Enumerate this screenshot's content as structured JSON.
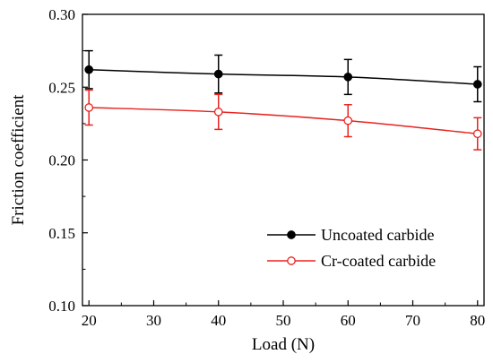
{
  "chart_data": {
    "type": "line",
    "x": [
      20,
      40,
      60,
      80
    ],
    "xlabel": "Load (N)",
    "ylabel": "Friction coefficient",
    "xlim": [
      19,
      81
    ],
    "ylim": [
      0.1,
      0.3
    ],
    "xticks": [
      20,
      30,
      40,
      50,
      60,
      70,
      80
    ],
    "yticks": [
      0.1,
      0.15,
      0.2,
      0.25,
      0.3
    ],
    "xtick_labels": [
      "20",
      "30",
      "40",
      "50",
      "60",
      "70",
      "80"
    ],
    "ytick_labels": [
      "0.10",
      "0.15",
      "0.20",
      "0.25",
      "0.30"
    ],
    "grid": false,
    "legend_position": "bottom-right",
    "series": [
      {
        "name": "Uncoated carbide",
        "color": "#000000",
        "marker": "filled-circle",
        "values": [
          0.262,
          0.259,
          0.257,
          0.252
        ],
        "errors": [
          0.013,
          0.013,
          0.012,
          0.012
        ]
      },
      {
        "name": "Cr-coated carbide",
        "color": "#e8231f",
        "marker": "open-circle",
        "values": [
          0.236,
          0.233,
          0.227,
          0.218
        ],
        "errors": [
          0.012,
          0.012,
          0.011,
          0.011
        ]
      }
    ]
  }
}
